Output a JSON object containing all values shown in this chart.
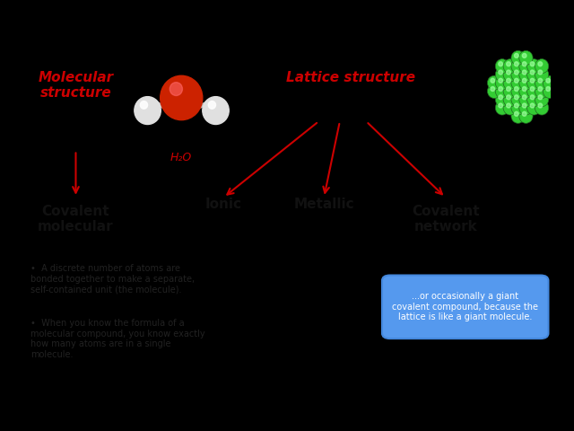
{
  "bg_color": "#000000",
  "slide_bg": "#ffffff",
  "title_mol": "Molecular\nstructure",
  "title_lat": "Lattice structure",
  "title_color": "#cc0000",
  "arrow_color": "#cc0000",
  "label_color": "#111111",
  "h2o_label": "H₂O",
  "h2o_color": "#cc0000",
  "box_text": "...or occasionally a giant\ncovalent compound, because the\nlattice is like a giant molecule.",
  "box_bg": "#5599ee",
  "box_text_color": "#ffffff",
  "bullet1": "A discrete number of atoms are\nbonded together to make a separate,\nself-contained unit (the molecule).",
  "bullet2": "When you know the formula of a\nmolecular compound, you know exactly\nhow many atoms are in a single\nmolecule.",
  "bullet_color": "#222222"
}
